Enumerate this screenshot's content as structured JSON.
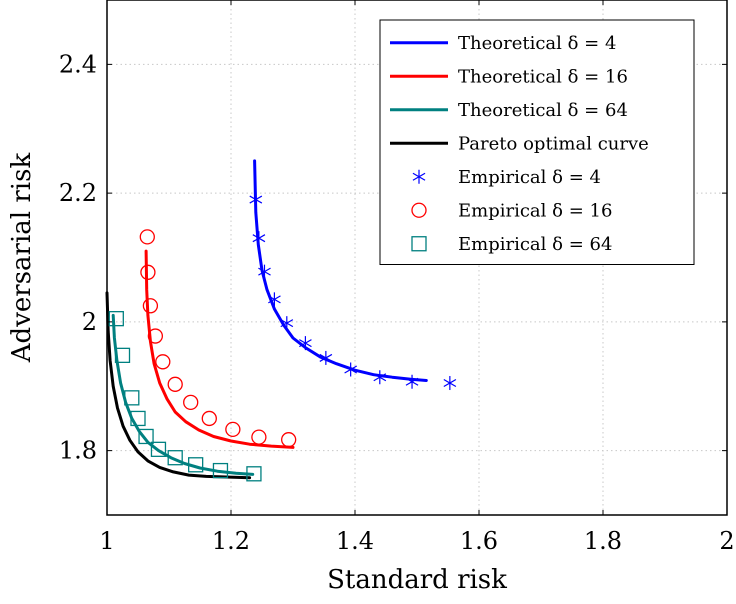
{
  "chart_data": {
    "type": "line",
    "xlabel": "Standard risk",
    "ylabel": "Adversarial risk",
    "xlim": [
      1,
      2
    ],
    "ylim": [
      1.7,
      2.5
    ],
    "xticks": [
      1,
      1.2,
      1.4,
      1.6,
      1.8,
      2
    ],
    "yticks": [
      1.8,
      2,
      2.2,
      2.4
    ],
    "xtick_labels": [
      "1",
      "1.2",
      "1.4",
      "1.6",
      "1.8",
      "2"
    ],
    "ytick_labels": [
      "1.8",
      "2",
      "2.2",
      "2.4"
    ],
    "grid": true,
    "legend_position": "top-right",
    "series": [
      {
        "name": "Theoretical δ = 4",
        "kind": "line",
        "color": "#0000ff",
        "x": [
          1.238,
          1.24,
          1.244,
          1.25,
          1.258,
          1.27,
          1.285,
          1.3,
          1.32,
          1.345,
          1.37,
          1.4,
          1.43,
          1.46,
          1.49,
          1.515
        ],
        "y": [
          2.25,
          2.17,
          2.12,
          2.08,
          2.05,
          2.02,
          1.995,
          1.975,
          1.96,
          1.945,
          1.935,
          1.925,
          1.918,
          1.914,
          1.911,
          1.909
        ]
      },
      {
        "name": "Theoretical δ = 16",
        "kind": "line",
        "color": "#ff0000",
        "x": [
          1.063,
          1.064,
          1.066,
          1.07,
          1.076,
          1.085,
          1.097,
          1.11,
          1.127,
          1.148,
          1.172,
          1.2,
          1.23,
          1.265,
          1.3
        ],
        "y": [
          2.11,
          2.05,
          2.01,
          1.97,
          1.935,
          1.905,
          1.88,
          1.86,
          1.845,
          1.832,
          1.822,
          1.815,
          1.81,
          1.807,
          1.805
        ]
      },
      {
        "name": "Theoretical δ = 64",
        "kind": "line",
        "color": "#008080",
        "x": [
          1.01,
          1.012,
          1.016,
          1.022,
          1.03,
          1.04,
          1.052,
          1.066,
          1.083,
          1.103,
          1.125,
          1.15,
          1.178,
          1.208,
          1.235
        ],
        "y": [
          2.01,
          1.975,
          1.94,
          1.905,
          1.875,
          1.85,
          1.83,
          1.813,
          1.8,
          1.789,
          1.78,
          1.773,
          1.768,
          1.765,
          1.763
        ]
      },
      {
        "name": "Pareto optimal curve",
        "kind": "line",
        "color": "#000000",
        "x": [
          1.0,
          1.002,
          1.005,
          1.01,
          1.017,
          1.026,
          1.037,
          1.05,
          1.066,
          1.085,
          1.107,
          1.132,
          1.16,
          1.192,
          1.23
        ],
        "y": [
          2.045,
          1.985,
          1.94,
          1.9,
          1.866,
          1.838,
          1.816,
          1.798,
          1.784,
          1.774,
          1.767,
          1.762,
          1.76,
          1.759,
          1.758
        ]
      },
      {
        "name": "Empirical δ = 4",
        "kind": "marker",
        "marker": "asterisk",
        "color": "#0000ff",
        "x": [
          1.24,
          1.245,
          1.254,
          1.27,
          1.29,
          1.32,
          1.353,
          1.393,
          1.44,
          1.492,
          1.553
        ],
        "y": [
          2.19,
          2.13,
          2.078,
          2.035,
          1.998,
          1.967,
          1.944,
          1.926,
          1.914,
          1.907,
          1.905
        ]
      },
      {
        "name": "Empirical δ = 16",
        "kind": "marker",
        "marker": "circle",
        "color": "#ff0000",
        "x": [
          1.065,
          1.066,
          1.07,
          1.078,
          1.09,
          1.11,
          1.135,
          1.165,
          1.203,
          1.245,
          1.293
        ],
        "y": [
          2.132,
          2.077,
          2.025,
          1.978,
          1.938,
          1.903,
          1.875,
          1.85,
          1.833,
          1.821,
          1.817
        ]
      },
      {
        "name": "Empirical δ = 64",
        "kind": "marker",
        "marker": "square",
        "color": "#008080",
        "x": [
          1.015,
          1.025,
          1.04,
          1.05,
          1.063,
          1.083,
          1.11,
          1.143,
          1.183,
          1.237
        ],
        "y": [
          2.005,
          1.948,
          1.882,
          1.85,
          1.822,
          1.802,
          1.789,
          1.778,
          1.769,
          1.764
        ]
      }
    ]
  }
}
